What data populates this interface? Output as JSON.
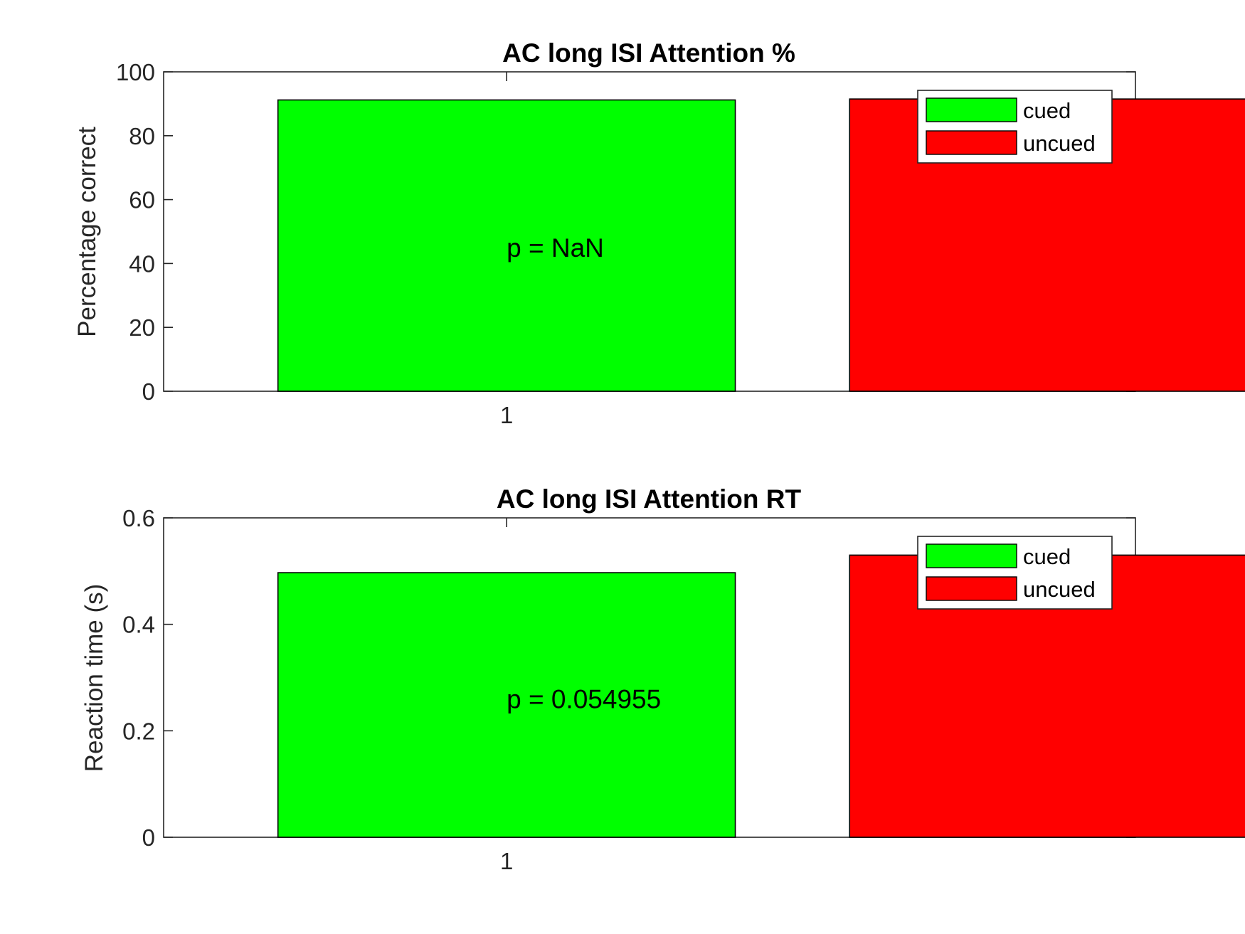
{
  "chart_data": [
    {
      "type": "bar",
      "title": "AC long ISI Attention %",
      "xlabel": "",
      "ylabel": "Percentage correct",
      "categories": [
        "1"
      ],
      "ylim": [
        0,
        100
      ],
      "yticks": [
        0,
        20,
        40,
        60,
        80,
        100
      ],
      "series": [
        {
          "name": "cued",
          "color": "#00ff00",
          "values": [
            91.2
          ]
        },
        {
          "name": "uncued",
          "color": "#ff0000",
          "values": [
            91.5
          ]
        }
      ],
      "annotation": "p = NaN",
      "annotation_y": 45,
      "legend": "top-right",
      "grid": false
    },
    {
      "type": "bar",
      "title": "AC long ISI Attention RT",
      "xlabel": "",
      "ylabel": "Reaction time (s)",
      "categories": [
        "1"
      ],
      "ylim": [
        0,
        0.6
      ],
      "yticks": [
        0,
        0.2,
        0.4,
        0.6
      ],
      "series": [
        {
          "name": "cued",
          "color": "#00ff00",
          "values": [
            0.497
          ]
        },
        {
          "name": "uncued",
          "color": "#ff0000",
          "values": [
            0.53
          ]
        }
      ],
      "annotation": "p = 0.054955",
      "annotation_y": 0.26,
      "legend": "top-right",
      "grid": false
    }
  ]
}
